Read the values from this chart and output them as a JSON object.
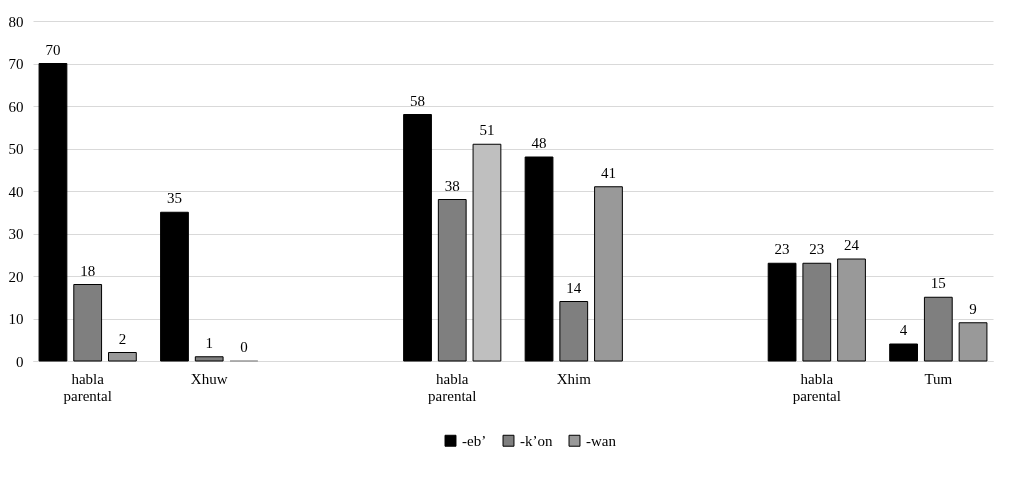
{
  "chart_data": {
    "type": "bar",
    "categories": [
      "habla parental",
      "Xhuw",
      null,
      "habla parental",
      "Xhim",
      null,
      "habla parental",
      "Tum"
    ],
    "series": [
      {
        "name": "-eb’",
        "color": "#000000",
        "values": [
          70,
          35,
          null,
          58,
          48,
          null,
          23,
          4
        ]
      },
      {
        "name": "-k’on",
        "color": "#7f7f7f",
        "values": [
          18,
          1,
          null,
          38,
          14,
          null,
          23,
          15
        ]
      },
      {
        "name": "-wan",
        "color": "#999999",
        "colors": [
          "#999999",
          "#999999",
          null,
          "#bfbfbf",
          "#999999",
          null,
          "#999999",
          "#999999"
        ],
        "values": [
          2,
          0,
          null,
          51,
          41,
          null,
          24,
          9
        ]
      }
    ],
    "ylim": [
      0,
      80
    ],
    "yticks": [
      0,
      10,
      20,
      30,
      40,
      50,
      60,
      70,
      80
    ],
    "grid": "y",
    "legend": "bottom",
    "data_labels": true
  }
}
